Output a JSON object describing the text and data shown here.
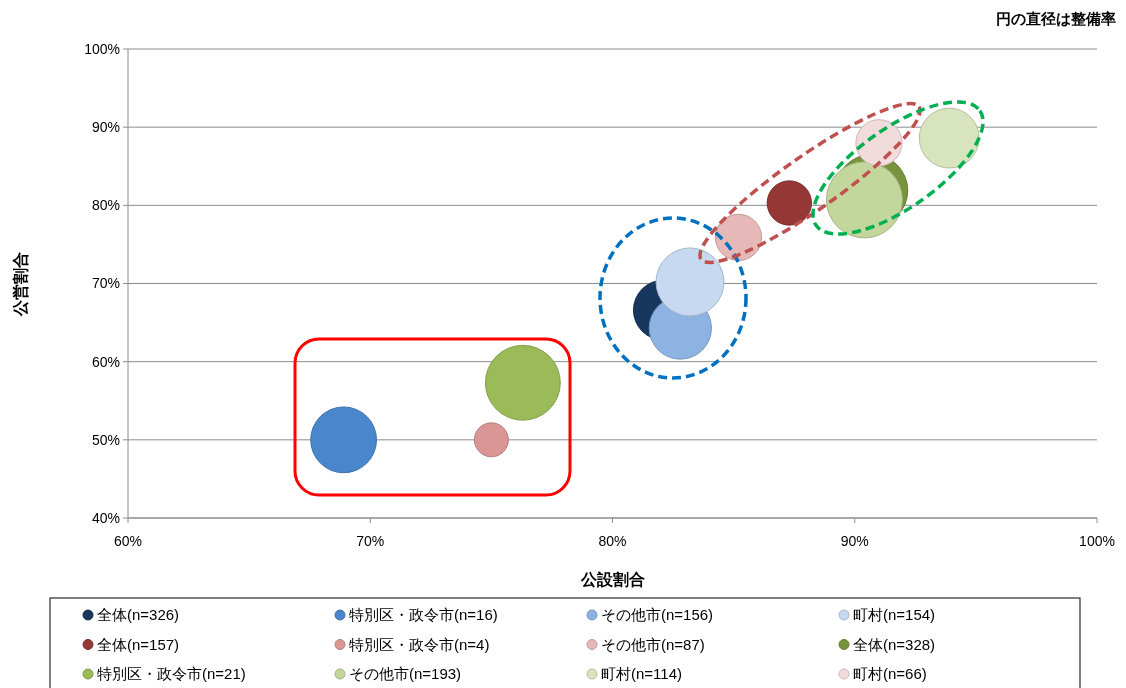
{
  "chart_data": {
    "type": "bubble",
    "xlabel": "公設割合",
    "ylabel": "公営割合",
    "annotations": [
      "円の直径は整備率"
    ],
    "xlim": [
      60,
      100
    ],
    "xticks": [
      {
        "value": 60,
        "label": "60%"
      },
      {
        "value": 70,
        "label": "70%"
      },
      {
        "value": 80,
        "label": "80%"
      },
      {
        "value": 90,
        "label": "90%"
      },
      {
        "value": 100,
        "label": "100%"
      }
    ],
    "ylim": [
      40,
      100
    ],
    "yticks": [
      {
        "value": 40,
        "label": "40%"
      },
      {
        "value": 50,
        "label": "50%"
      },
      {
        "value": 60,
        "label": "60%"
      },
      {
        "value": 70,
        "label": "70%"
      },
      {
        "value": 80,
        "label": "80%"
      },
      {
        "value": 90,
        "label": "90%"
      },
      {
        "value": 100,
        "label": "100%"
      }
    ],
    "grid": "y",
    "legend": "bottom",
    "series": [
      {
        "name": "全体(n=326)",
        "color": "#17375e",
        "x": [
          82.1
        ],
        "values": [
          66.6
        ],
        "sizes": [
          0.62
        ]
      },
      {
        "name": "特別区・政令市(n=16)",
        "color": "#4a86cc",
        "x": [
          68.9
        ],
        "values": [
          50.0
        ],
        "sizes": [
          0.75
        ]
      },
      {
        "name": "その他市(n=156)",
        "color": "#8db3e2",
        "x": [
          82.8
        ],
        "values": [
          64.3
        ],
        "sizes": [
          0.67
        ]
      },
      {
        "name": "町村(n=154)",
        "color": "#c6d9f1",
        "x": [
          83.2
        ],
        "values": [
          70.2
        ],
        "sizes": [
          0.8
        ]
      },
      {
        "name": "全体(n=157)",
        "color": "#953735",
        "x": [
          87.3
        ],
        "values": [
          80.3
        ],
        "sizes": [
          0.34
        ]
      },
      {
        "name": "特別区・政令市(n=4)",
        "color": "#d99694",
        "x": [
          75.0
        ],
        "values": [
          50.0
        ],
        "sizes": [
          0.2
        ]
      },
      {
        "name": "その他市(n=87)",
        "color": "#e6b9b8",
        "x": [
          85.2
        ],
        "values": [
          75.9
        ],
        "sizes": [
          0.37
        ]
      },
      {
        "name": "全体(n=328)",
        "color": "#77933c",
        "x": [
          90.7
        ],
        "values": [
          81.9
        ],
        "sizes": [
          0.9
        ]
      },
      {
        "name": "特別区・政令市(n=21)",
        "color": "#9bbb59",
        "x": [
          76.3
        ],
        "values": [
          57.3
        ],
        "sizes": [
          0.97
        ]
      },
      {
        "name": "その他市(n=193)",
        "color": "#c3d69b",
        "x": [
          90.4
        ],
        "values": [
          80.7
        ],
        "sizes": [
          1
        ]
      },
      {
        "name": "町村(n=114)",
        "color": "#d7e4bd",
        "x": [
          93.9
        ],
        "values": [
          88.6
        ],
        "sizes": [
          0.62
        ]
      },
      {
        "name": "町村(n=66)",
        "color": "#f2dcdb",
        "x": [
          91.0
        ],
        "values": [
          88.0
        ],
        "sizes": [
          0.37
        ]
      }
    ]
  }
}
